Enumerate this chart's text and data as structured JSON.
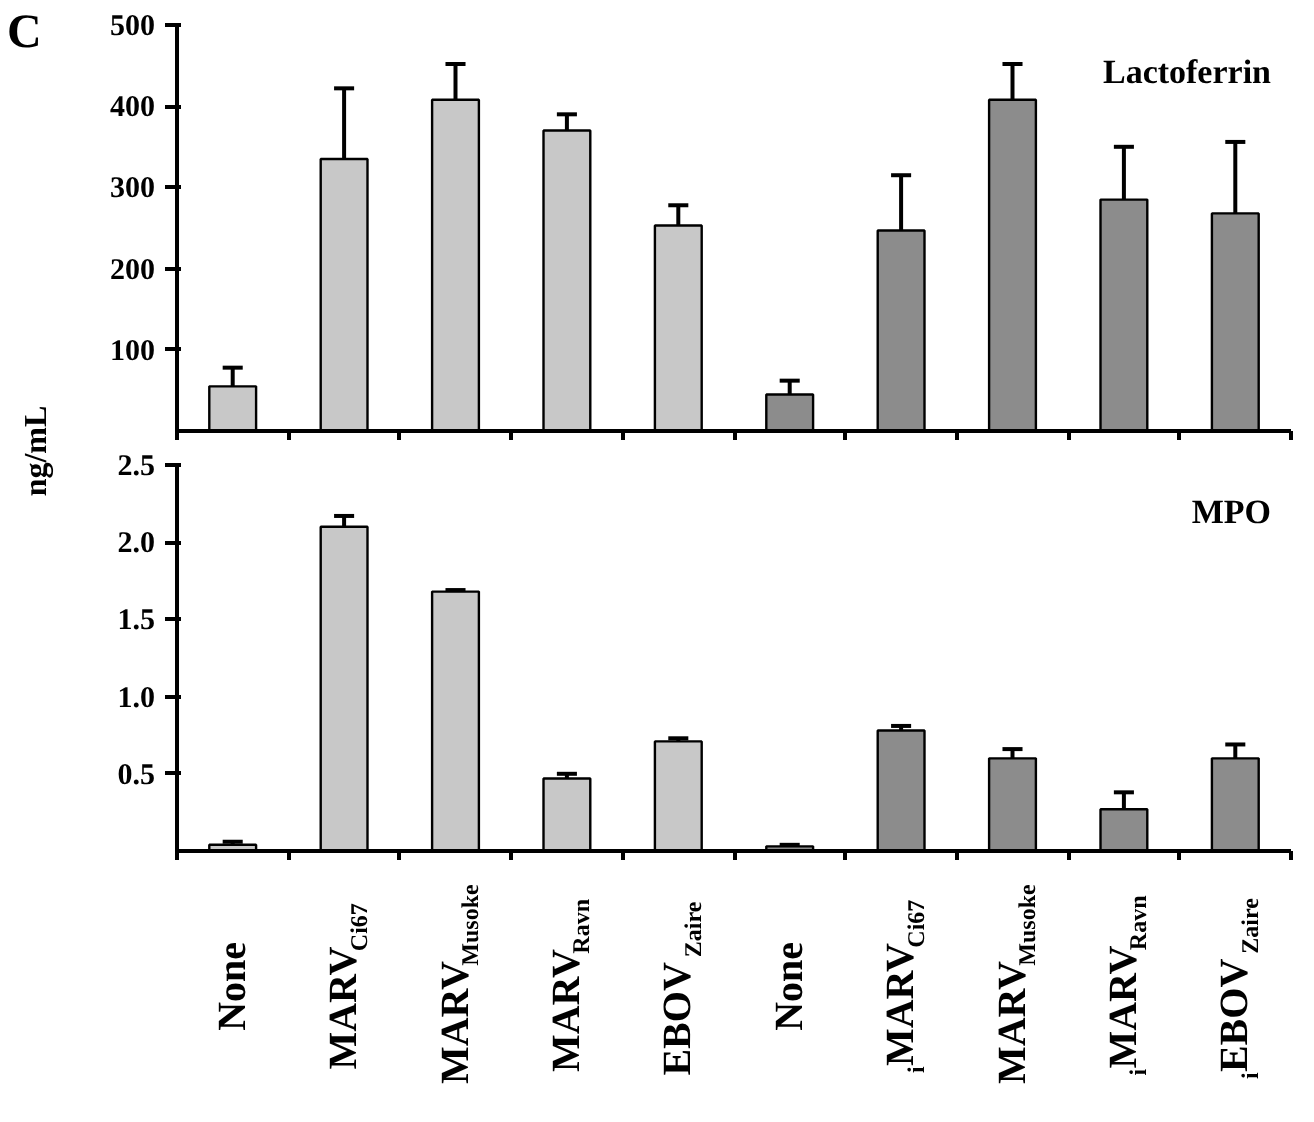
{
  "chart_data": [
    {
      "type": "bar",
      "title": "Lactoferrin",
      "ylabel": "ng/mL",
      "annotations": [
        "C"
      ],
      "categories": [
        "None",
        "MARV$_{Ci67}$",
        "MARV$_{Musoke}$",
        "MARV$_{Ravn}$",
        "EBOV$_{Zaire}$",
        "None",
        "$_{i}$MARV$_{Ci67}$",
        "MARV$_{Musoke}$",
        "$_{i}$MARV$_{Ravn}$",
        "$_{i}$EBOV$_{Zaire}$"
      ],
      "values": [
        55,
        335,
        408,
        370,
        253,
        45,
        247,
        408,
        285,
        268
      ],
      "errors": [
        [
          55,
          78
        ],
        [
          335,
          422
        ],
        [
          408,
          452
        ],
        [
          370,
          390
        ],
        [
          253,
          278
        ],
        [
          45,
          62
        ],
        [
          247,
          315
        ],
        [
          408,
          452
        ],
        [
          285,
          350
        ],
        [
          268,
          356
        ]
      ],
      "colors": [
        "#c8c8c8",
        "#c8c8c8",
        "#c8c8c8",
        "#c8c8c8",
        "#c8c8c8",
        "#8c8c8c",
        "#8c8c8c",
        "#8c8c8c",
        "#8c8c8c",
        "#8c8c8c"
      ],
      "ylim": [
        0,
        500
      ],
      "yticks": [
        100,
        200,
        300,
        400,
        500
      ],
      "tick_labels": "y",
      "grid": false
    },
    {
      "type": "bar",
      "title": "MPO",
      "categories": [
        "None",
        "MARV$_{Ci67}$",
        "MARV$_{Musoke}$",
        "MARV$_{Ravn}$",
        "EBOV$_{Zaire}$",
        "None",
        "$_{i}$MARV$_{Ci67}$",
        "MARV$_{Musoke}$",
        "$_{i}$MARV$_{Ravn}$",
        "$_{i}$EBOV$_{Zaire}$"
      ],
      "values": [
        0.04,
        2.1,
        1.68,
        0.47,
        0.71,
        0.03,
        0.78,
        0.6,
        0.27,
        0.6
      ],
      "errors": [
        [
          0.04,
          0.06
        ],
        [
          2.1,
          2.17
        ],
        [
          1.68,
          1.69
        ],
        [
          0.47,
          0.5
        ],
        [
          0.71,
          0.73
        ],
        [
          0.03,
          0.04
        ],
        [
          0.78,
          0.81
        ],
        [
          0.6,
          0.66
        ],
        [
          0.27,
          0.38
        ],
        [
          0.6,
          0.69
        ]
      ],
      "colors": [
        "#c8c8c8",
        "#c8c8c8",
        "#c8c8c8",
        "#c8c8c8",
        "#c8c8c8",
        "#8c8c8c",
        "#8c8c8c",
        "#8c8c8c",
        "#8c8c8c",
        "#8c8c8c"
      ],
      "ylim": [
        0,
        2.5
      ],
      "yticks": [
        {
          "value": 0.5,
          "label": "0.5"
        },
        {
          "value": 1.0,
          "label": "1.0"
        },
        {
          "value": 1.5,
          "label": "1.5"
        },
        {
          "value": 2.0,
          "label": "2.0"
        },
        {
          "value": 2.5,
          "label": "2.5"
        }
      ],
      "grid": false
    }
  ]
}
